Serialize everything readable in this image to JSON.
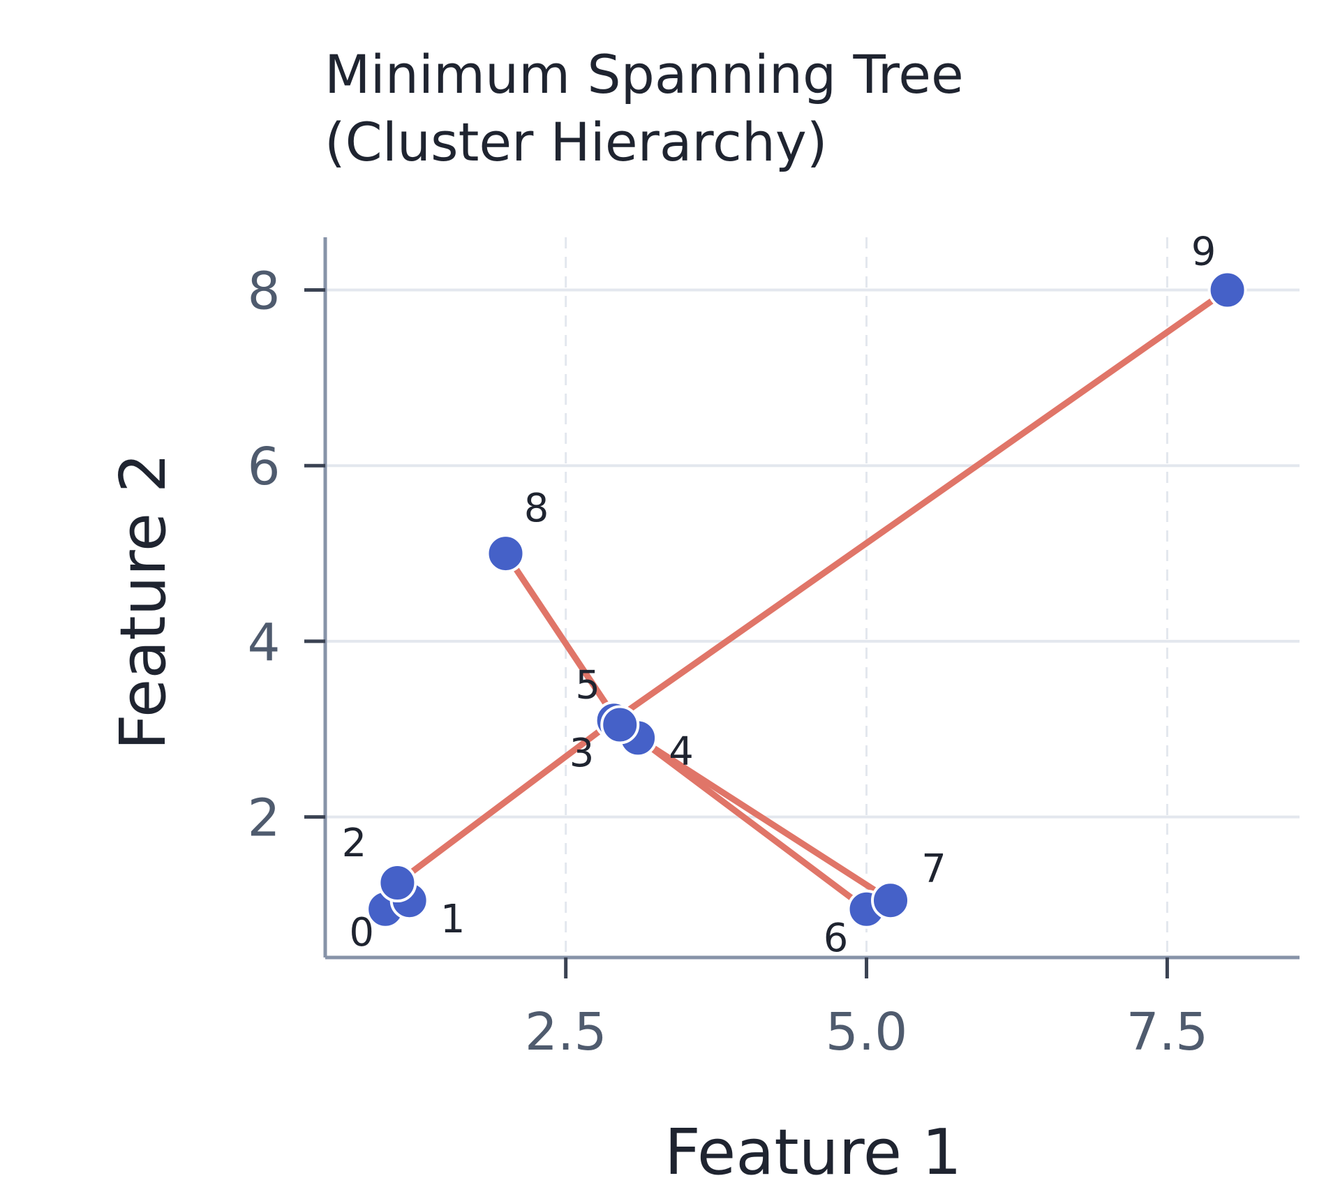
{
  "chart_data": {
    "type": "scatter",
    "title_lines": [
      "Minimum Spanning Tree",
      "(Cluster Hierarchy)"
    ],
    "xlabel": "Feature 1",
    "ylabel": "Feature 2",
    "xlim": [
      0.5,
      8.6
    ],
    "ylim": [
      0.4,
      8.6
    ],
    "xticks": [
      2.5,
      5.0,
      7.5
    ],
    "xtick_labels": [
      "2.5",
      "5.0",
      "7.5"
    ],
    "yticks": [
      2,
      4,
      6,
      8
    ],
    "ytick_labels": [
      "2",
      "4",
      "6",
      "8"
    ],
    "grid": true,
    "points": [
      {
        "id": "0",
        "x": 1.0,
        "y": 0.95
      },
      {
        "id": "1",
        "x": 1.2,
        "y": 1.05
      },
      {
        "id": "2",
        "x": 1.1,
        "y": 1.25
      },
      {
        "id": "3",
        "x": 2.9,
        "y": 3.1
      },
      {
        "id": "4",
        "x": 3.1,
        "y": 2.9
      },
      {
        "id": "5",
        "x": 2.95,
        "y": 3.05
      },
      {
        "id": "6",
        "x": 5.0,
        "y": 0.95
      },
      {
        "id": "7",
        "x": 5.2,
        "y": 1.05
      },
      {
        "id": "8",
        "x": 2.0,
        "y": 5.0
      },
      {
        "id": "9",
        "x": 8.0,
        "y": 8.0
      }
    ],
    "edges": [
      [
        "0",
        "1"
      ],
      [
        "1",
        "2"
      ],
      [
        "2",
        "3"
      ],
      [
        "3",
        "5"
      ],
      [
        "3",
        "4"
      ],
      [
        "5",
        "8"
      ],
      [
        "4",
        "6"
      ],
      [
        "6",
        "7"
      ],
      [
        "4",
        "7"
      ],
      [
        "3",
        "9"
      ]
    ],
    "colors": {
      "point": "#4561c8",
      "edge": "#e07568",
      "grid": "#e3e7ee",
      "axis": "#8793a8"
    }
  }
}
